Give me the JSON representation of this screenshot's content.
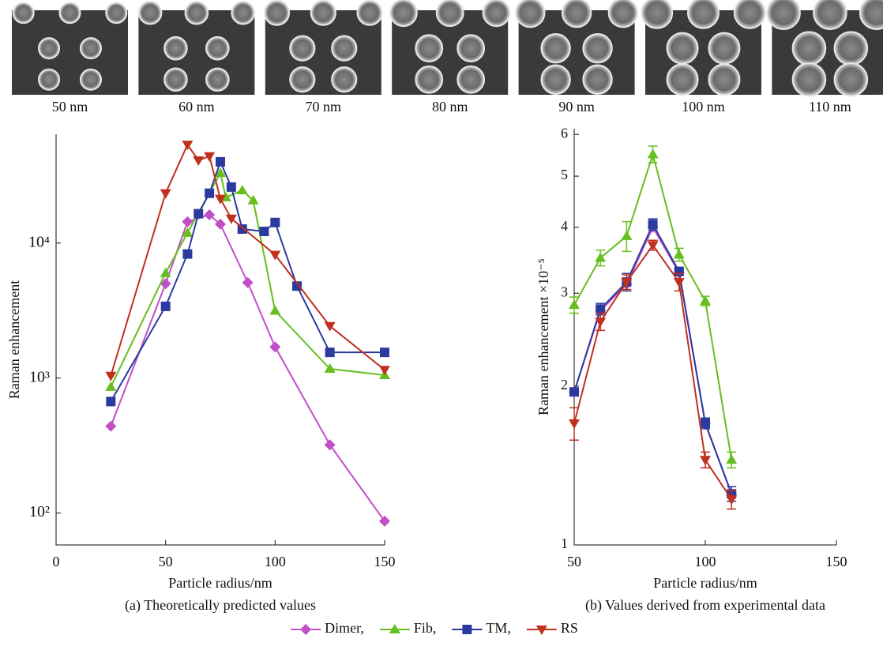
{
  "sem_images": {
    "labels": [
      "50 nm",
      "60 nm",
      "70 nm",
      "80 nm",
      "90 nm",
      "100 nm",
      "110 nm"
    ]
  },
  "chart_data": [
    {
      "type": "line",
      "caption": "(a) Theoretically predicted values",
      "x_label": "Particle radius/nm",
      "y_label": "Raman enhancement",
      "xlim": [
        0,
        150
      ],
      "xticks": [
        0,
        50,
        100,
        150
      ],
      "ylim": [
        58,
        64000
      ],
      "log_y": true,
      "yticks": [
        {
          "value": 100,
          "label": "10²"
        },
        {
          "value": 1000,
          "label": "10³"
        },
        {
          "value": 10000,
          "label": "10⁴"
        }
      ],
      "legend": "bottom",
      "series": [
        {
          "name": "Dimer,",
          "color": "#c04fc8",
          "marker": "diamond",
          "x": [
            25,
            50,
            60,
            70,
            75,
            87.5,
            100,
            125,
            150
          ],
          "values": [
            440,
            5000,
            14400,
            16200,
            13800,
            5100,
            1700,
            320,
            87
          ]
        },
        {
          "name": "Fib,",
          "color": "#66bf1f",
          "marker": "triangle-up",
          "x": [
            25,
            50,
            60,
            75,
            77.5,
            85,
            90,
            100,
            125,
            150
          ],
          "values": [
            860,
            6000,
            11900,
            33000,
            21800,
            24600,
            20700,
            3150,
            1170,
            1050
          ]
        },
        {
          "name": "TM,",
          "color": "#2b3a9e",
          "marker": "square",
          "x": [
            25,
            50,
            60,
            65,
            70,
            75,
            80,
            85,
            95,
            100,
            110,
            125,
            150
          ],
          "values": [
            670,
            3400,
            8300,
            16500,
            23400,
            40000,
            26000,
            12700,
            12200,
            14200,
            4800,
            1550,
            1550
          ]
        },
        {
          "name": "RS",
          "color": "#c0301e",
          "marker": "triangle-down",
          "x": [
            25,
            50,
            60,
            65,
            70,
            75,
            80,
            100,
            125,
            150
          ],
          "values": [
            1040,
            23400,
            53600,
            41000,
            44000,
            21300,
            15200,
            8200,
            2430,
            1150
          ]
        }
      ]
    },
    {
      "type": "errorbar",
      "caption": "(b) Values derived from experimental data",
      "x_label": "Particle radius/nm",
      "y_label": "Raman enhancement ×10⁻⁵",
      "xlim": [
        50,
        150
      ],
      "xticks": [
        50,
        100,
        150
      ],
      "ylim": [
        1,
        6.15
      ],
      "log_y": true,
      "yticks": [
        1,
        2,
        3,
        4,
        5,
        6
      ],
      "series": [
        {
          "color": "#c04fc8",
          "marker": "diamond",
          "x": [
            50,
            60,
            70,
            80,
            90,
            100,
            110
          ],
          "values": [
            1.95,
            2.78,
            3.12,
            4.0,
            3.28,
            1.7,
            1.25
          ]
        },
        {
          "color": "#66bf1f",
          "marker": "triangle-up",
          "x": [
            50,
            60,
            70,
            80,
            90,
            100,
            110
          ],
          "values": [
            2.85,
            3.5,
            3.85,
            5.5,
            3.55,
            2.9,
            1.45
          ],
          "errors": [
            0.1,
            0.12,
            0.25,
            0.2,
            0.1,
            0.06,
            0.05
          ]
        },
        {
          "color": "#2b3a9e",
          "marker": "square",
          "x": [
            50,
            60,
            70,
            80,
            90,
            100,
            110
          ],
          "values": [
            1.95,
            2.8,
            3.15,
            4.05,
            3.3,
            1.7,
            1.25
          ],
          "errors": [
            0.03,
            0.07,
            0.12,
            0.1,
            0.05,
            0.04,
            0.04
          ]
        },
        {
          "color": "#c0301e",
          "marker": "triangle-down",
          "x": [
            50,
            60,
            70,
            80,
            90,
            100,
            110
          ],
          "values": [
            1.7,
            2.65,
            3.15,
            3.7,
            3.15,
            1.45,
            1.22
          ],
          "errors": [
            0.12,
            0.1,
            0.1,
            0.08,
            0.12,
            0.05,
            0.05
          ]
        }
      ]
    }
  ]
}
